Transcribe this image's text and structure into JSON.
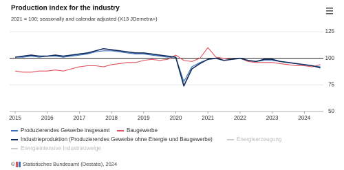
{
  "chart_data": {
    "type": "line",
    "title": "Production index for the industry",
    "subtitle": "2021 = 100; seasonally and calendar adjusted (X13 JDemetra+)",
    "x": [
      2015,
      2015.25,
      2015.5,
      2015.75,
      2016,
      2016.25,
      2016.5,
      2016.75,
      2017,
      2017.25,
      2017.5,
      2017.75,
      2018,
      2018.25,
      2018.5,
      2018.75,
      2019,
      2019.25,
      2019.5,
      2019.75,
      2020,
      2020.25,
      2020.5,
      2020.75,
      2021,
      2021.25,
      2021.5,
      2021.75,
      2022,
      2022.25,
      2022.5,
      2022.75,
      2023,
      2023.25,
      2023.5,
      2023.75,
      2024,
      2024.25,
      2024.5
    ],
    "series": [
      {
        "name": "Produzierendes Gewerbe insgesamt",
        "color": "#3b6fb6",
        "values": [
          101,
          101,
          102,
          101,
          102,
          102,
          101,
          102,
          103,
          104,
          106,
          107,
          107,
          106,
          105,
          104,
          104,
          103,
          102,
          101,
          101,
          78,
          92,
          96,
          99,
          100,
          98,
          99,
          100,
          98,
          97,
          98,
          98,
          97,
          96,
          95,
          94,
          93,
          92
        ]
      },
      {
        "name": "Baugewerbe",
        "color": "#e0505f",
        "values": [
          88,
          87,
          87,
          88,
          88,
          89,
          88,
          90,
          92,
          93,
          93,
          92,
          94,
          95,
          96,
          96,
          98,
          99,
          98,
          99,
          103,
          98,
          97,
          100,
          110,
          101,
          100,
          99,
          100,
          97,
          96,
          96,
          96,
          95,
          94,
          93,
          93,
          92,
          94
        ]
      },
      {
        "name": "Industrieproduktion (Produzierendes Gewerbe ohne Energie und Baugewerbe)",
        "color": "#0e2a5c",
        "values": [
          101,
          102,
          103,
          102,
          102,
          103,
          102,
          103,
          104,
          105,
          107,
          109,
          108,
          107,
          106,
          105,
          105,
          104,
          103,
          102,
          101,
          74,
          90,
          95,
          99,
          100,
          98,
          99,
          100,
          98,
          97,
          99,
          99,
          97,
          96,
          95,
          94,
          93,
          91
        ]
      }
    ],
    "legend_inactive": [
      "Energieerzeugung",
      "Energieintensive Industriezweige"
    ],
    "reference_line": 100,
    "xlim": [
      2015,
      2024.8
    ],
    "xticks": [
      2015,
      2016,
      2017,
      2018,
      2019,
      2020,
      2021,
      2022,
      2023,
      2024
    ],
    "ylim": [
      50,
      125
    ],
    "yticks": [
      50,
      75,
      100,
      125
    ],
    "grid": true,
    "footer": "Statistisches Bundesamt (Destatis), 2024"
  }
}
